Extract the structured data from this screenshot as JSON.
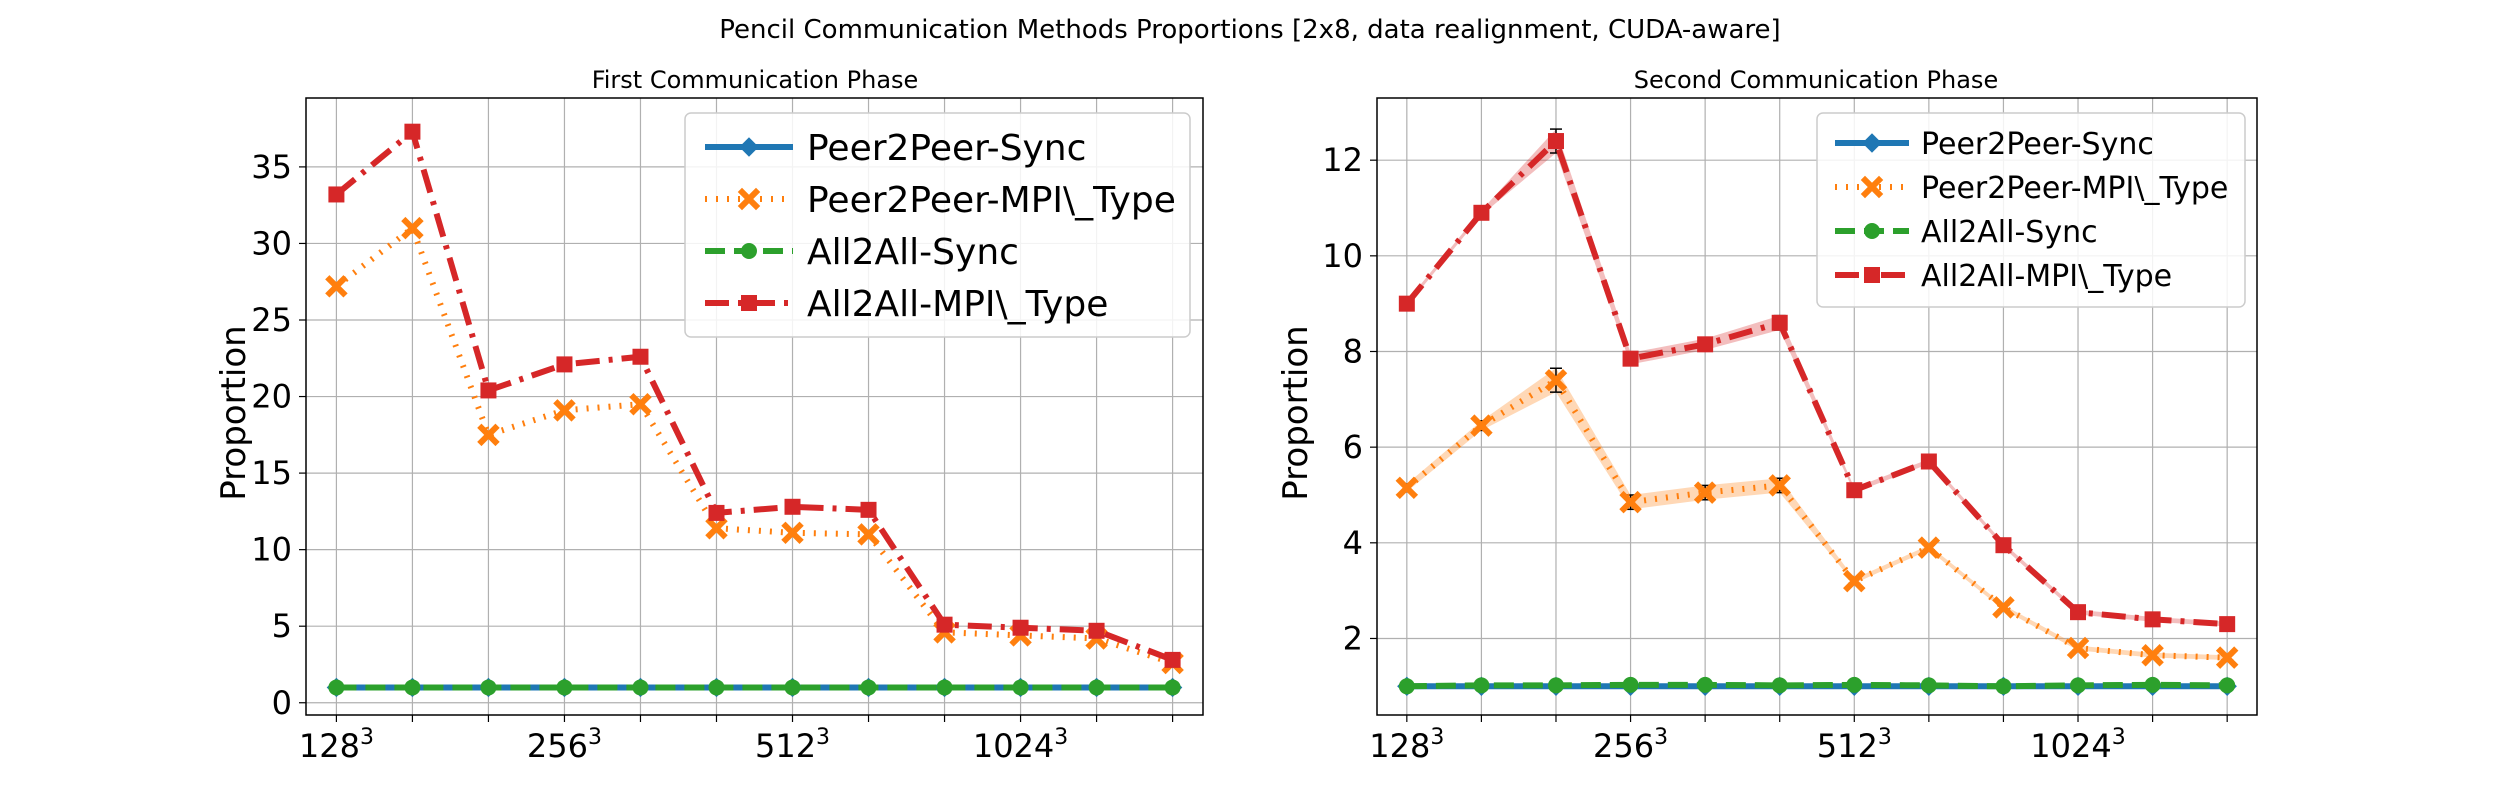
{
  "figure": {
    "title": "Pencil Communication Methods Proportions [2x8, data realignment, CUDA-aware]"
  },
  "series_styles": [
    {
      "key": "p2p_sync",
      "color": "#1f77b4",
      "marker": "diamond",
      "dash": "solid"
    },
    {
      "key": "p2p_mpi",
      "color": "#ff7f0e",
      "marker": "x",
      "dash": "dotted"
    },
    {
      "key": "a2a_sync",
      "color": "#2ca02c",
      "marker": "circle",
      "dash": "dashed"
    },
    {
      "key": "a2a_mpi",
      "color": "#d62728",
      "marker": "square",
      "dash": "dashdot"
    }
  ],
  "chart_data": [
    {
      "type": "line",
      "title": "First Communication Phase",
      "xlabel": "",
      "ylabel": "Proportion",
      "x": [
        1,
        2,
        3,
        4,
        5,
        6,
        7,
        8,
        9,
        10,
        11,
        12
      ],
      "xtick_labels": [
        {
          "x": 1,
          "base": "128",
          "exp": "3"
        },
        {
          "x": 4,
          "base": "256",
          "exp": "3"
        },
        {
          "x": 7,
          "base": "512",
          "exp": "3"
        },
        {
          "x": 10,
          "base": "1024",
          "exp": "3"
        }
      ],
      "xlim": [
        0.6,
        12.4
      ],
      "ylim": [
        -0.8,
        39.5
      ],
      "yticks": [
        0,
        5,
        10,
        15,
        20,
        25,
        30,
        35
      ],
      "grid": true,
      "legend_position": "top-right",
      "series": [
        {
          "name": "Peer2Peer-Sync",
          "values": [
            1.0,
            1.0,
            1.0,
            1.0,
            1.0,
            1.0,
            1.0,
            1.0,
            1.0,
            1.0,
            1.0,
            1.0
          ]
        },
        {
          "name": "Peer2Peer-MPI\\_Type",
          "values": [
            27.2,
            31.0,
            17.5,
            19.1,
            19.5,
            11.4,
            11.1,
            11.0,
            4.6,
            4.4,
            4.2,
            2.6
          ]
        },
        {
          "name": "All2All-Sync",
          "values": [
            1.0,
            1.0,
            1.0,
            1.0,
            1.0,
            1.0,
            1.0,
            1.0,
            1.0,
            1.0,
            1.0,
            1.0
          ]
        },
        {
          "name": "All2All-MPI\\_Type",
          "values": [
            33.2,
            37.3,
            20.4,
            22.1,
            22.6,
            12.4,
            12.8,
            12.6,
            5.1,
            4.9,
            4.7,
            2.8
          ]
        }
      ]
    },
    {
      "type": "line",
      "title": "Second Communication Phase",
      "xlabel": "",
      "ylabel": "Proportion",
      "x": [
        1,
        2,
        3,
        4,
        5,
        6,
        7,
        8,
        9,
        10,
        11,
        12
      ],
      "xtick_labels": [
        {
          "x": 1,
          "base": "128",
          "exp": "3"
        },
        {
          "x": 4,
          "base": "256",
          "exp": "3"
        },
        {
          "x": 7,
          "base": "512",
          "exp": "3"
        },
        {
          "x": 10,
          "base": "1024",
          "exp": "3"
        }
      ],
      "xlim": [
        0.6,
        12.4
      ],
      "ylim": [
        0.4,
        13.3
      ],
      "yticks": [
        2,
        4,
        6,
        8,
        10,
        12
      ],
      "grid": true,
      "legend_position": "top-right",
      "series": [
        {
          "name": "Peer2Peer-Sync",
          "values": [
            1.0,
            1.0,
            1.0,
            1.0,
            1.0,
            1.0,
            1.0,
            1.0,
            1.0,
            1.0,
            1.0,
            1.0
          ]
        },
        {
          "name": "Peer2Peer-MPI\\_Type",
          "values": [
            5.15,
            6.45,
            7.4,
            4.85,
            5.05,
            5.2,
            3.2,
            3.9,
            2.65,
            1.8,
            1.65,
            1.6
          ],
          "error": [
            0.08,
            0.1,
            0.25,
            0.15,
            0.15,
            0.15,
            0.05,
            0.05,
            0.05,
            0.05,
            0.05,
            0.05
          ]
        },
        {
          "name": "All2All-Sync",
          "values": [
            1.0,
            1.02,
            1.02,
            1.03,
            1.03,
            1.02,
            1.03,
            1.02,
            1.0,
            1.02,
            1.03,
            1.02
          ]
        },
        {
          "name": "All2All-MPI\\_Type",
          "values": [
            9.0,
            10.9,
            12.4,
            7.85,
            8.15,
            8.6,
            5.1,
            5.7,
            3.95,
            2.55,
            2.4,
            2.3
          ],
          "error": [
            0.05,
            0.05,
            0.25,
            0.12,
            0.12,
            0.15,
            0.05,
            0.05,
            0.05,
            0.05,
            0.05,
            0.05
          ]
        }
      ]
    }
  ]
}
